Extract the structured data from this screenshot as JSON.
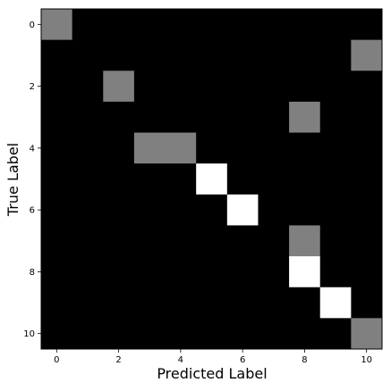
{
  "chart_data": {
    "type": "heatmap",
    "title": "",
    "xlabel": "Predicted Label",
    "ylabel": "True Label",
    "x_categories": [
      0,
      1,
      2,
      3,
      4,
      5,
      6,
      7,
      8,
      9,
      10
    ],
    "y_categories": [
      0,
      1,
      2,
      3,
      4,
      5,
      6,
      7,
      8,
      9,
      10
    ],
    "xticks": [
      "0",
      "2",
      "4",
      "6",
      "8",
      "10"
    ],
    "yticks": [
      "0",
      "2",
      "4",
      "6",
      "8",
      "10"
    ],
    "colormap": "gray",
    "vmin": 0,
    "vmax": 1,
    "grid": false,
    "values": [
      [
        0.5,
        0,
        0,
        0,
        0,
        0,
        0,
        0,
        0,
        0,
        0
      ],
      [
        0,
        0,
        0,
        0,
        0,
        0,
        0,
        0,
        0,
        0,
        0.5
      ],
      [
        0,
        0,
        0.5,
        0,
        0,
        0,
        0,
        0,
        0,
        0,
        0
      ],
      [
        0,
        0,
        0,
        0,
        0,
        0,
        0,
        0,
        0.5,
        0,
        0
      ],
      [
        0,
        0,
        0,
        0.5,
        0.5,
        0,
        0,
        0,
        0,
        0,
        0
      ],
      [
        0,
        0,
        0,
        0,
        0,
        1,
        0,
        0,
        0,
        0,
        0
      ],
      [
        0,
        0,
        0,
        0,
        0,
        0,
        1,
        0,
        0,
        0,
        0
      ],
      [
        0,
        0,
        0,
        0,
        0,
        0,
        0,
        0,
        0.5,
        0,
        0
      ],
      [
        0,
        0,
        0,
        0,
        0,
        0,
        0,
        0,
        1,
        0,
        0
      ],
      [
        0,
        0,
        0,
        0,
        0,
        0,
        0,
        0,
        0,
        1,
        0
      ],
      [
        0,
        0,
        0,
        0,
        0,
        0,
        0,
        0,
        0,
        0,
        0.5
      ]
    ]
  }
}
